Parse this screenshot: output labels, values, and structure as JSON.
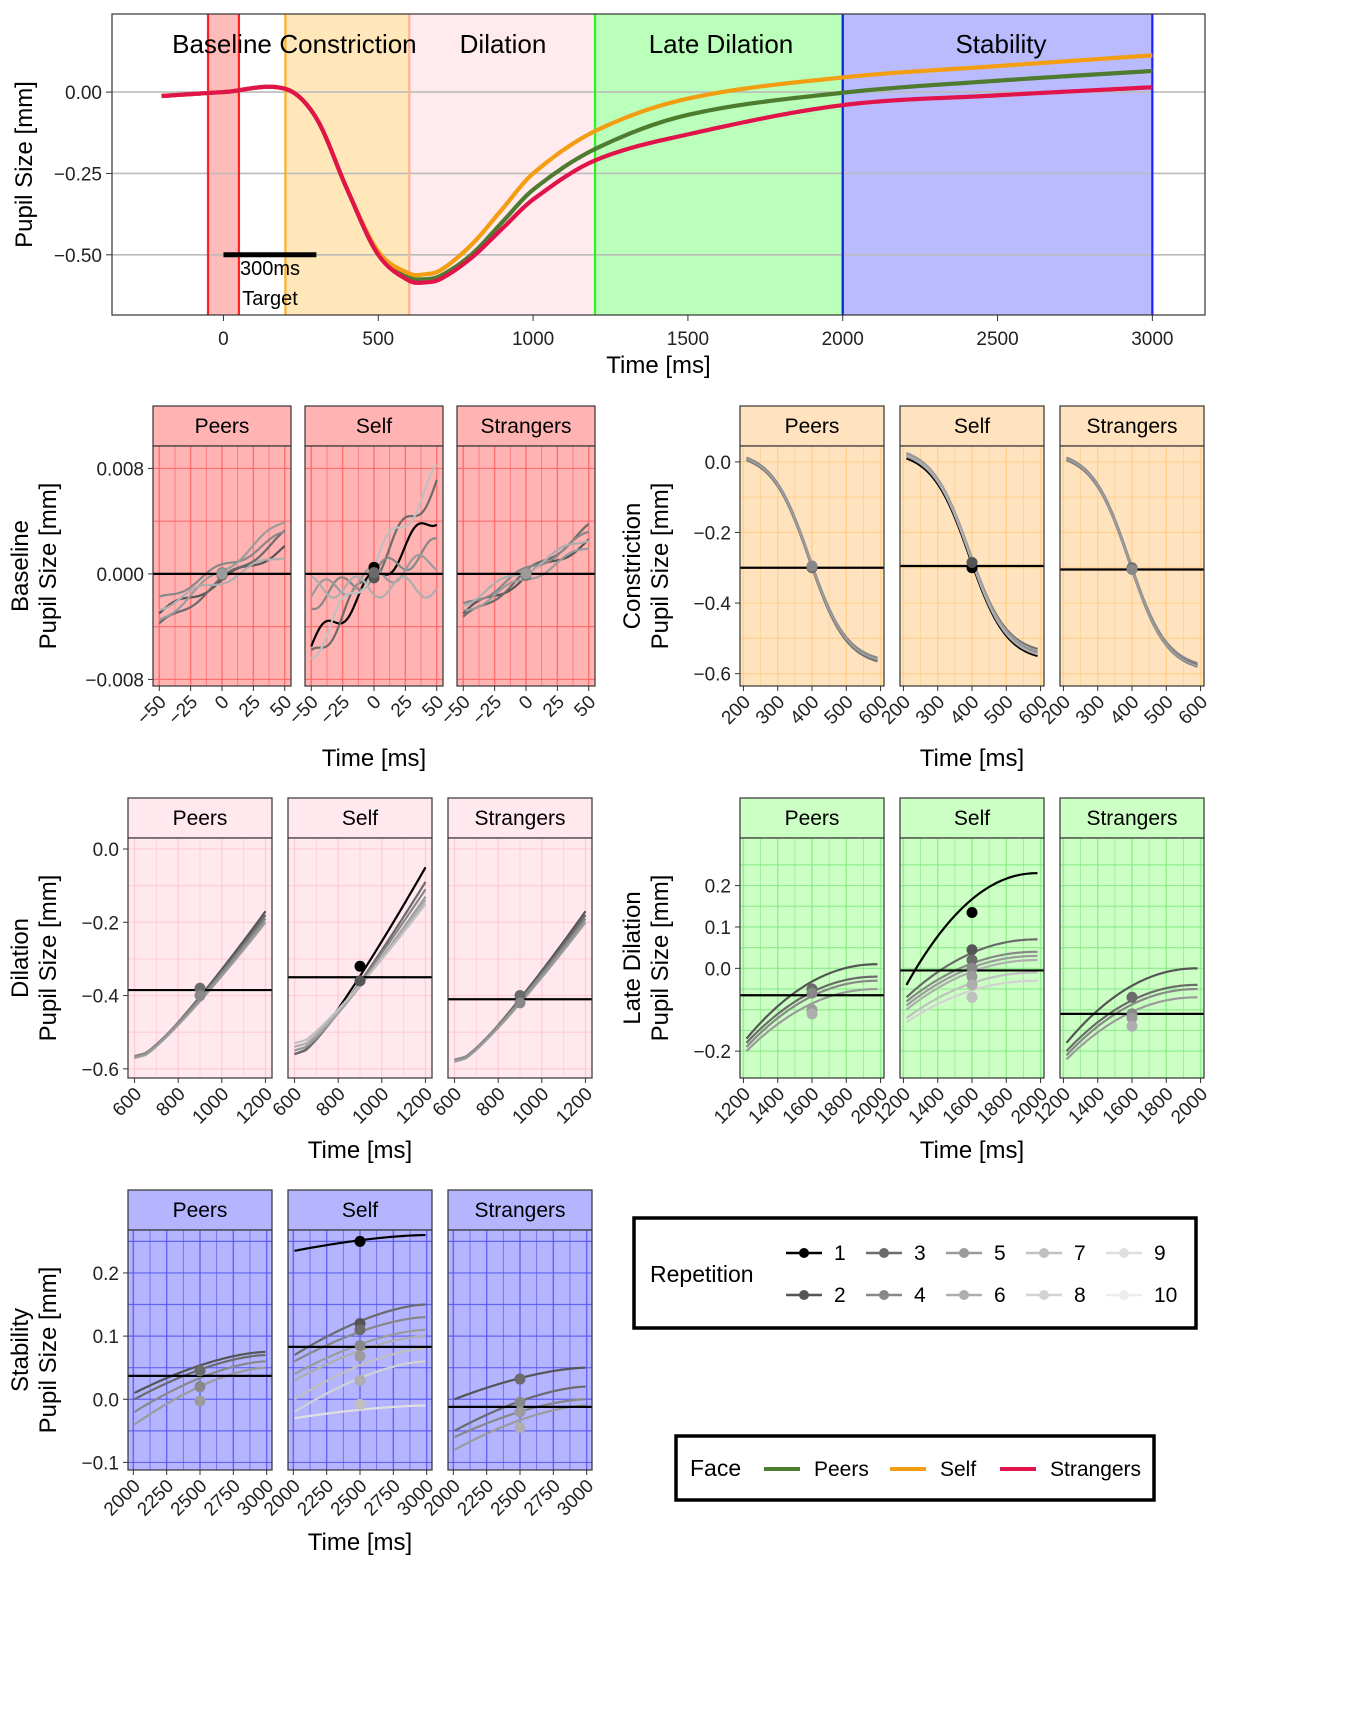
{
  "chart_data": {
    "top": {
      "type": "line",
      "xlabel": "Time [ms]",
      "ylabel": "Pupil Size [mm]",
      "xlim": [
        -360,
        3170
      ],
      "ylim": [
        -0.685,
        0.24
      ],
      "xticks": [
        0,
        500,
        1000,
        1500,
        2000,
        2500,
        3000
      ],
      "yticks": [
        -0.5,
        -0.25,
        0.0
      ],
      "ytick_labels": [
        "−0.50",
        "−0.25",
        "0.00"
      ],
      "phases": [
        {
          "name": "Baseline",
          "start": -50,
          "end": 50,
          "color": "#FF0000"
        },
        {
          "name": "Constriction",
          "start": 200,
          "end": 600,
          "color": "#FFA500"
        },
        {
          "name": "Dilation",
          "start": 600,
          "end": 1200,
          "color": "#FFB6C1"
        },
        {
          "name": "Late Dilation",
          "start": 1200,
          "end": 2000,
          "color": "#00FF00"
        },
        {
          "name": "Stability",
          "start": 2000,
          "end": 3000,
          "color": "#0000FF"
        }
      ],
      "annotation": {
        "duration_label": "300ms",
        "target_label": "Target",
        "bar": [
          0,
          300
        ],
        "y": -0.5
      },
      "series": [
        {
          "name": "Peers",
          "color": "#4E7C2F",
          "x": [
            -200,
            0,
            200,
            300,
            400,
            500,
            600,
            650,
            700,
            800,
            900,
            1000,
            1200,
            1500,
            2000,
            2500,
            3000
          ],
          "y": [
            -0.012,
            0.0,
            0.01,
            -0.08,
            -0.3,
            -0.5,
            -0.57,
            -0.575,
            -0.565,
            -0.5,
            -0.4,
            -0.3,
            -0.175,
            -0.07,
            -0.002,
            0.035,
            0.065
          ]
        },
        {
          "name": "Self",
          "color": "#F29D12",
          "x": [
            -200,
            0,
            200,
            300,
            400,
            500,
            600,
            650,
            700,
            800,
            900,
            1000,
            1200,
            1500,
            2000,
            2500,
            3000
          ],
          "y": [
            -0.012,
            0.0,
            0.01,
            -0.08,
            -0.3,
            -0.49,
            -0.558,
            -0.56,
            -0.548,
            -0.47,
            -0.36,
            -0.25,
            -0.12,
            -0.02,
            0.045,
            0.08,
            0.113
          ]
        },
        {
          "name": "Strangers",
          "color": "#E0144A",
          "x": [
            -200,
            0,
            200,
            300,
            400,
            500,
            600,
            650,
            700,
            800,
            900,
            1000,
            1200,
            1500,
            2000,
            2500,
            3000
          ],
          "y": [
            -0.012,
            0.0,
            0.01,
            -0.08,
            -0.3,
            -0.5,
            -0.58,
            -0.585,
            -0.575,
            -0.51,
            -0.42,
            -0.33,
            -0.21,
            -0.13,
            -0.04,
            -0.01,
            0.015
          ]
        }
      ]
    },
    "facets": [
      {
        "phase": "Baseline",
        "ylabel": [
          "Baseline",
          "Pupil Size [mm]"
        ],
        "xlabel": "Time [ms]",
        "bg": "#FFB3B3",
        "grid": "#FF5A5A",
        "xlim": [
          -55,
          55
        ],
        "xticks": [
          -50,
          -25,
          0,
          25,
          50
        ],
        "xtick_labels": [
          "−50",
          "−25",
          "0",
          "25",
          "50"
        ],
        "ylim": [
          -0.0085,
          0.0097
        ],
        "yticks": [
          -0.008,
          0.0,
          0.008
        ],
        "ytick_labels": [
          "−0.008",
          "0.000",
          "0.008"
        ],
        "grid_y": [
          -0.004,
          0.004
        ],
        "panels": [
          {
            "label": "Peers",
            "hline": 0.0,
            "lines": [
              [
                -0.003,
                0.002
              ],
              [
                -0.004,
                0.003
              ],
              [
                -0.002,
                0.003
              ],
              [
                -0.0035,
                0.004
              ],
              [
                -0.0025,
                0.0015
              ]
            ],
            "points": [
              -0.0001,
              0.0001,
              0.0
            ]
          },
          {
            "label": "Self",
            "hline": 0.0,
            "lines": [
              [
                -0.0055,
                0.0045
              ],
              [
                -0.0065,
                0.007
              ],
              [
                -0.002,
                0.002
              ],
              [
                -0.0015,
                0.001
              ],
              [
                -0.001,
                -0.001
              ],
              [
                -0.006,
                0.0075
              ]
            ],
            "points": [
              0.0005,
              -0.0003,
              0.0001
            ]
          },
          {
            "label": "Strangers",
            "hline": 0.0,
            "lines": [
              [
                -0.003,
                0.0025
              ],
              [
                -0.0035,
                0.0035
              ],
              [
                -0.0025,
                0.003
              ],
              [
                -0.0028,
                0.002
              ],
              [
                -0.0022,
                0.0028
              ]
            ],
            "points": [
              -0.0001,
              0.0001,
              0.0
            ]
          }
        ]
      },
      {
        "phase": "Constriction",
        "ylabel": [
          "Constriction",
          "Pupil Size [mm]"
        ],
        "xlabel": "Time [ms]",
        "bg": "#FFE3BF",
        "grid": "#FFCC80",
        "xlim": [
          190,
          610
        ],
        "xticks": [
          200,
          300,
          400,
          500,
          600
        ],
        "xtick_labels": [
          "200",
          "300",
          "400",
          "500",
          "600"
        ],
        "ylim": [
          -0.635,
          0.045
        ],
        "yticks": [
          -0.6,
          -0.4,
          -0.2,
          0.0
        ],
        "ytick_labels": [
          "−0.6",
          "−0.4",
          "−0.2",
          "0.0"
        ],
        "grid_y": [
          -0.5,
          -0.3,
          -0.1
        ],
        "panels": [
          {
            "label": "Peers",
            "hline": -0.3,
            "lines": [
              [
                0.01,
                -0.56
              ],
              [
                0.005,
                -0.565
              ],
              [
                0.012,
                -0.555
              ],
              [
                0.008,
                -0.56
              ]
            ],
            "points": [
              -0.3,
              -0.295
            ]
          },
          {
            "label": "Self",
            "hline": -0.295,
            "lines": [
              [
                0.01,
                -0.55
              ],
              [
                0.02,
                -0.53
              ],
              [
                0.015,
                -0.54
              ],
              [
                0.025,
                -0.535
              ],
              [
                0.018,
                -0.545
              ]
            ],
            "points": [
              -0.3,
              -0.285
            ]
          },
          {
            "label": "Strangers",
            "hline": -0.305,
            "lines": [
              [
                0.01,
                -0.575
              ],
              [
                0.005,
                -0.58
              ],
              [
                0.012,
                -0.57
              ],
              [
                0.008,
                -0.578
              ]
            ],
            "points": [
              -0.3,
              -0.305
            ]
          }
        ]
      },
      {
        "phase": "Dilation",
        "ylabel": [
          "Dilation",
          "Pupil Size [mm]"
        ],
        "xlabel": "Time [ms]",
        "bg": "#FFE9EE",
        "grid": "#FFC5D0",
        "xlim": [
          570,
          1230
        ],
        "xticks": [
          600,
          800,
          1000,
          1200
        ],
        "xtick_labels": [
          "600",
          "800",
          "1000",
          "1200"
        ],
        "ylim": [
          -0.625,
          0.03
        ],
        "yticks": [
          -0.6,
          -0.4,
          -0.2,
          0.0
        ],
        "ytick_labels": [
          "−0.6",
          "−0.4",
          "−0.2",
          "0.0"
        ],
        "grid_y": [
          -0.5,
          -0.3,
          -0.1
        ],
        "panels": [
          {
            "label": "Peers",
            "hline": -0.385,
            "lines": [
              [
                -0.57,
                -0.17
              ],
              [
                -0.57,
                -0.18
              ],
              [
                -0.565,
                -0.19
              ],
              [
                -0.57,
                -0.2
              ]
            ],
            "points": [
              -0.38,
              -0.4
            ]
          },
          {
            "label": "Self",
            "hline": -0.35,
            "lines": [
              [
                -0.56,
                -0.05
              ],
              [
                -0.56,
                -0.09
              ],
              [
                -0.55,
                -0.11
              ],
              [
                -0.55,
                -0.13
              ],
              [
                -0.54,
                -0.14
              ],
              [
                -0.53,
                -0.15
              ]
            ],
            "points": [
              -0.32,
              -0.36
            ]
          },
          {
            "label": "Strangers",
            "hline": -0.41,
            "lines": [
              [
                -0.58,
                -0.17
              ],
              [
                -0.58,
                -0.18
              ],
              [
                -0.575,
                -0.19
              ],
              [
                -0.58,
                -0.2
              ]
            ],
            "points": [
              -0.4,
              -0.42
            ]
          }
        ]
      },
      {
        "phase": "Late Dilation",
        "ylabel": [
          "Late Dilation",
          "Pupil Size [mm]"
        ],
        "xlabel": "Time [ms]",
        "bg": "#CCFFC4",
        "grid": "#7FE77F",
        "xlim": [
          1180,
          2020
        ],
        "xticks": [
          1200,
          1400,
          1600,
          1800,
          2000
        ],
        "xtick_labels": [
          "1200",
          "1400",
          "1600",
          "1800",
          "2000"
        ],
        "ylim": [
          -0.265,
          0.315
        ],
        "yticks": [
          -0.2,
          0.0,
          0.1,
          0.2
        ],
        "ytick_labels": [
          "−0.2",
          "0.0",
          "0.1",
          "0.2"
        ],
        "grid_y": [
          -0.15,
          -0.1,
          -0.05,
          0.05,
          0.15,
          0.25
        ],
        "panels": [
          {
            "label": "Peers",
            "hline": -0.065,
            "lines": [
              [
                -0.17,
                0.01
              ],
              [
                -0.18,
                -0.02
              ],
              [
                -0.19,
                -0.03
              ],
              [
                -0.2,
                -0.05
              ]
            ],
            "points": [
              -0.05,
              -0.06,
              -0.1,
              -0.11
            ]
          },
          {
            "label": "Self",
            "hline": -0.005,
            "lines": [
              [
                -0.04,
                0.23
              ],
              [
                -0.07,
                0.07
              ],
              [
                -0.08,
                0.04
              ],
              [
                -0.09,
                0.03
              ],
              [
                -0.1,
                0.02
              ],
              [
                -0.12,
                -0.01
              ],
              [
                -0.13,
                -0.03
              ]
            ],
            "points": [
              0.135,
              0.045,
              0.02,
              0.0,
              -0.02,
              -0.04,
              -0.07
            ]
          },
          {
            "label": "Strangers",
            "hline": -0.11,
            "lines": [
              [
                -0.18,
                0.0
              ],
              [
                -0.2,
                -0.04
              ],
              [
                -0.21,
                -0.05
              ],
              [
                -0.22,
                -0.07
              ]
            ],
            "points": [
              -0.07,
              -0.11,
              -0.12,
              -0.14
            ]
          }
        ]
      },
      {
        "phase": "Stability",
        "ylabel": [
          "Stability",
          "Pupil Size [mm]"
        ],
        "xlabel": "Time [ms]",
        "bg": "#B4B4FF",
        "grid": "#4A4AEE",
        "xlim": [
          1960,
          3040
        ],
        "xticks": [
          2000,
          2250,
          2500,
          2750,
          3000
        ],
        "xtick_labels": [
          "2000",
          "2250",
          "2500",
          "2750",
          "3000"
        ],
        "ylim": [
          -0.112,
          0.268
        ],
        "yticks": [
          -0.1,
          0.0,
          0.1,
          0.2
        ],
        "ytick_labels": [
          "−0.1",
          "0.0",
          "0.1",
          "0.2"
        ],
        "grid_y": [
          -0.05,
          0.05,
          0.15,
          0.25
        ],
        "panels": [
          {
            "label": "Peers",
            "hline": 0.037,
            "lines": [
              [
                0.01,
                0.075
              ],
              [
                0.0,
                0.07
              ],
              [
                -0.02,
                0.06
              ],
              [
                -0.04,
                0.05
              ]
            ],
            "points": [
              0.045,
              0.02,
              -0.003
            ]
          },
          {
            "label": "Self",
            "hline": 0.083,
            "lines": [
              [
                0.235,
                0.26
              ],
              [
                0.07,
                0.15
              ],
              [
                0.06,
                0.13
              ],
              [
                0.04,
                0.11
              ],
              [
                0.03,
                0.1
              ],
              [
                0.0,
                0.08
              ],
              [
                -0.02,
                0.06
              ],
              [
                -0.03,
                -0.01
              ]
            ],
            "points": [
              0.25,
              0.12,
              0.11,
              0.085,
              0.068,
              0.03,
              -0.008
            ]
          },
          {
            "label": "Strangers",
            "hline": -0.012,
            "lines": [
              [
                0.0,
                0.05
              ],
              [
                -0.05,
                0.02
              ],
              [
                -0.06,
                0.0
              ],
              [
                -0.08,
                -0.01
              ]
            ],
            "points": [
              0.032,
              -0.005,
              -0.02,
              -0.045
            ]
          }
        ]
      }
    ],
    "repetition_legend": {
      "title": "Repetition",
      "items": [
        {
          "label": "1",
          "color": "#000000"
        },
        {
          "label": "2",
          "color": "#555555"
        },
        {
          "label": "3",
          "color": "#6B6B6B"
        },
        {
          "label": "4",
          "color": "#888888"
        },
        {
          "label": "5",
          "color": "#9B9B9B"
        },
        {
          "label": "6",
          "color": "#AEAEAE"
        },
        {
          "label": "7",
          "color": "#C0C0C0"
        },
        {
          "label": "8",
          "color": "#D2D2D2"
        },
        {
          "label": "9",
          "color": "#E0E0E0"
        },
        {
          "label": "10",
          "color": "#EDEDED"
        }
      ]
    },
    "face_legend": {
      "title": "Face",
      "items": [
        {
          "label": "Peers",
          "color": "#4E7C2F"
        },
        {
          "label": "Self",
          "color": "#F29D12"
        },
        {
          "label": "Strangers",
          "color": "#E0144A"
        }
      ]
    }
  }
}
